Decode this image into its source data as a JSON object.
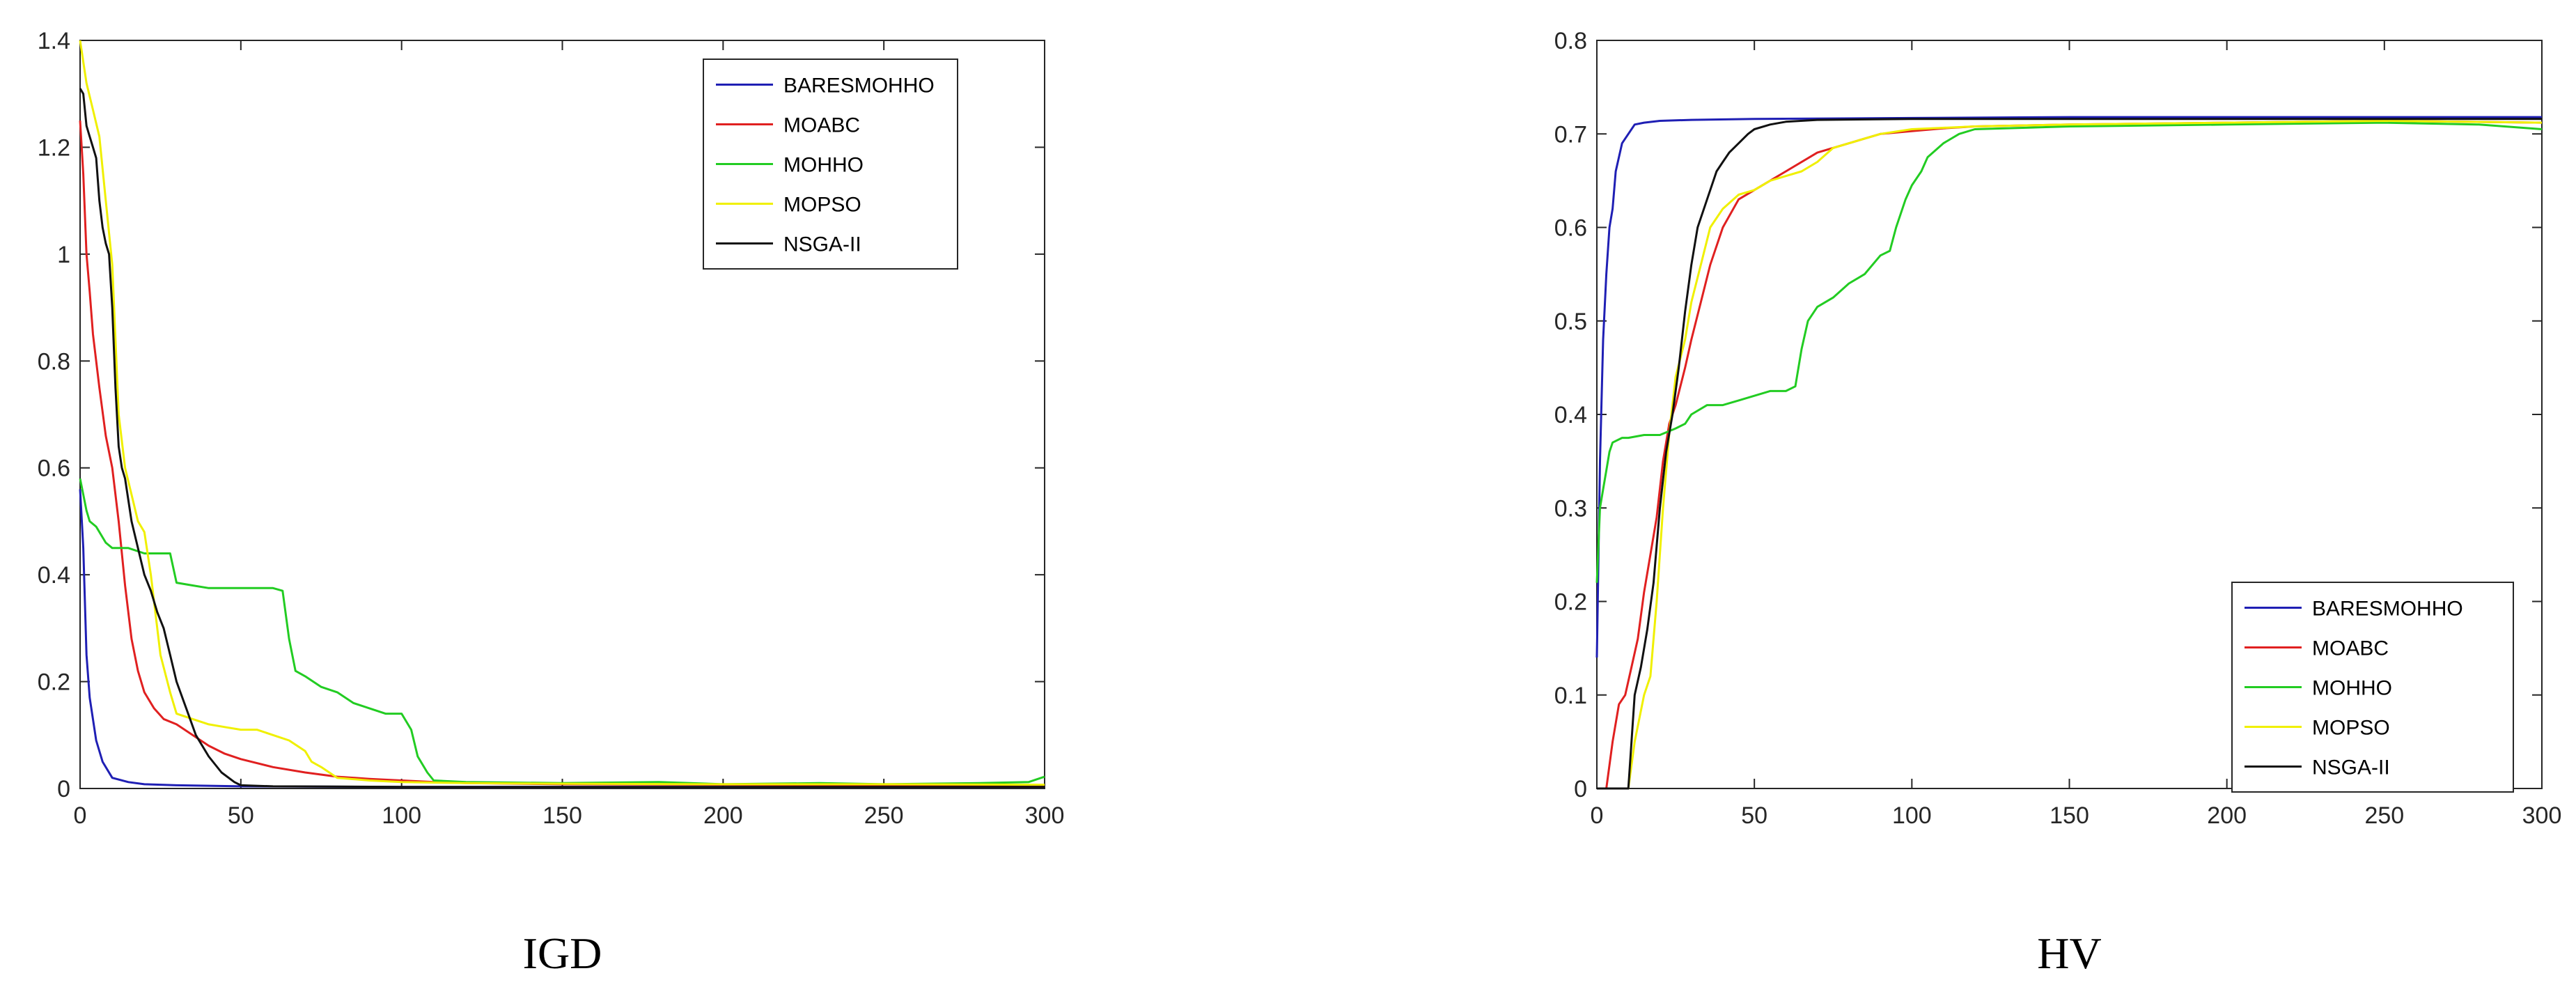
{
  "chart_data": [
    {
      "type": "line",
      "caption": "IGD",
      "xlim": [
        0,
        300
      ],
      "ylim": [
        0,
        1.4
      ],
      "xticks": [
        "0",
        "50",
        "100",
        "150",
        "200",
        "250",
        "300"
      ],
      "yticks": [
        "0",
        "0.2",
        "0.4",
        "0.6",
        "0.8",
        "1",
        "1.2",
        "1.4"
      ],
      "grid": false,
      "legend_position": "top-right",
      "series": [
        {
          "name": "BARESMOHHO",
          "color": "#1f1fb4",
          "x": [
            0,
            1,
            2,
            3,
            5,
            7,
            10,
            15,
            20,
            30,
            50,
            100,
            200,
            300
          ],
          "y": [
            0.56,
            0.45,
            0.25,
            0.17,
            0.09,
            0.05,
            0.02,
            0.012,
            0.008,
            0.006,
            0.004,
            0.003,
            0.003,
            0.003
          ]
        },
        {
          "name": "MOABC",
          "color": "#e02020",
          "x": [
            0,
            1,
            2,
            3,
            4,
            6,
            8,
            10,
            12,
            14,
            16,
            18,
            20,
            23,
            26,
            30,
            35,
            40,
            45,
            50,
            60,
            70,
            80,
            90,
            100,
            110,
            120,
            150,
            200,
            250,
            300
          ],
          "y": [
            1.25,
            1.15,
            1.0,
            0.93,
            0.85,
            0.75,
            0.66,
            0.6,
            0.5,
            0.38,
            0.28,
            0.22,
            0.18,
            0.15,
            0.13,
            0.12,
            0.1,
            0.08,
            0.065,
            0.055,
            0.04,
            0.03,
            0.022,
            0.018,
            0.015,
            0.012,
            0.01,
            0.008,
            0.007,
            0.006,
            0.006
          ]
        },
        {
          "name": "MOHHO",
          "color": "#22cc22",
          "x": [
            0,
            1,
            2,
            3,
            5,
            8,
            10,
            12,
            15,
            20,
            25,
            28,
            30,
            35,
            40,
            45,
            50,
            55,
            60,
            63,
            65,
            67,
            70,
            75,
            80,
            85,
            90,
            95,
            100,
            103,
            105,
            108,
            110,
            120,
            150,
            180,
            200,
            230,
            250,
            280,
            295,
            300
          ],
          "y": [
            0.58,
            0.55,
            0.52,
            0.5,
            0.49,
            0.46,
            0.45,
            0.45,
            0.45,
            0.44,
            0.44,
            0.44,
            0.385,
            0.38,
            0.375,
            0.375,
            0.375,
            0.375,
            0.375,
            0.37,
            0.28,
            0.22,
            0.21,
            0.19,
            0.18,
            0.16,
            0.15,
            0.14,
            0.14,
            0.11,
            0.06,
            0.03,
            0.015,
            0.012,
            0.01,
            0.012,
            0.008,
            0.01,
            0.008,
            0.01,
            0.012,
            0.022
          ]
        },
        {
          "name": "MOPSO",
          "color": "#f0f000",
          "x": [
            0,
            2,
            4,
            6,
            8,
            10,
            12,
            14,
            16,
            18,
            20,
            22,
            25,
            28,
            30,
            35,
            40,
            45,
            50,
            55,
            60,
            65,
            70,
            72,
            75,
            80,
            90,
            100,
            120,
            150,
            200,
            250,
            300
          ],
          "y": [
            1.4,
            1.32,
            1.27,
            1.22,
            1.1,
            0.98,
            0.7,
            0.6,
            0.55,
            0.5,
            0.48,
            0.4,
            0.25,
            0.18,
            0.14,
            0.13,
            0.12,
            0.115,
            0.11,
            0.11,
            0.1,
            0.09,
            0.07,
            0.05,
            0.04,
            0.02,
            0.015,
            0.012,
            0.01,
            0.009,
            0.008,
            0.008,
            0.007
          ]
        },
        {
          "name": "NSGA-II",
          "color": "#111111",
          "x": [
            0,
            1,
            2,
            3,
            4,
            5,
            6,
            7,
            8,
            9,
            10,
            11,
            12,
            13,
            14,
            16,
            18,
            20,
            22,
            24,
            26,
            28,
            30,
            33,
            36,
            40,
            44,
            48,
            50,
            60,
            100,
            200,
            300
          ],
          "y": [
            1.31,
            1.3,
            1.24,
            1.22,
            1.2,
            1.18,
            1.1,
            1.05,
            1.02,
            1.0,
            0.9,
            0.75,
            0.64,
            0.6,
            0.58,
            0.5,
            0.45,
            0.4,
            0.37,
            0.33,
            0.3,
            0.25,
            0.2,
            0.15,
            0.1,
            0.06,
            0.03,
            0.012,
            0.006,
            0.004,
            0.003,
            0.003,
            0.003
          ]
        }
      ]
    },
    {
      "type": "line",
      "caption": "HV",
      "xlim": [
        0,
        300
      ],
      "ylim": [
        0,
        0.8
      ],
      "xticks": [
        "0",
        "50",
        "100",
        "150",
        "200",
        "250",
        "300"
      ],
      "yticks": [
        "0",
        "0.1",
        "0.2",
        "0.3",
        "0.4",
        "0.5",
        "0.6",
        "0.7",
        "0.8"
      ],
      "grid": false,
      "legend_position": "bottom-right",
      "series": [
        {
          "name": "BARESMOHHO",
          "color": "#1f1fb4",
          "x": [
            0,
            1,
            2,
            3,
            4,
            5,
            6,
            8,
            10,
            12,
            15,
            20,
            30,
            50,
            100,
            150,
            200,
            250,
            300
          ],
          "y": [
            0.14,
            0.35,
            0.48,
            0.55,
            0.6,
            0.62,
            0.66,
            0.69,
            0.7,
            0.71,
            0.712,
            0.714,
            0.715,
            0.716,
            0.717,
            0.718,
            0.718,
            0.718,
            0.718
          ]
        },
        {
          "name": "MOABC",
          "color": "#e02020",
          "x": [
            0,
            3,
            5,
            7,
            9,
            11,
            13,
            15,
            17,
            19,
            21,
            23,
            25,
            28,
            30,
            33,
            36,
            40,
            45,
            50,
            55,
            60,
            70,
            80,
            90,
            100,
            110,
            120,
            150,
            200,
            250,
            300
          ],
          "y": [
            0,
            0,
            0.05,
            0.09,
            0.1,
            0.13,
            0.16,
            0.21,
            0.25,
            0.29,
            0.35,
            0.39,
            0.41,
            0.45,
            0.48,
            0.52,
            0.56,
            0.6,
            0.63,
            0.64,
            0.65,
            0.66,
            0.68,
            0.69,
            0.7,
            0.703,
            0.706,
            0.708,
            0.71,
            0.712,
            0.714,
            0.712
          ]
        },
        {
          "name": "MOHHO",
          "color": "#22cc22",
          "x": [
            0,
            1,
            2,
            3,
            4,
            5,
            8,
            10,
            15,
            20,
            25,
            28,
            30,
            35,
            40,
            45,
            50,
            55,
            60,
            63,
            65,
            67,
            70,
            75,
            80,
            85,
            90,
            93,
            95,
            98,
            100,
            103,
            105,
            110,
            115,
            120,
            150,
            200,
            250,
            280,
            300
          ],
          "y": [
            0.22,
            0.3,
            0.32,
            0.34,
            0.36,
            0.37,
            0.375,
            0.375,
            0.378,
            0.378,
            0.385,
            0.39,
            0.4,
            0.41,
            0.41,
            0.415,
            0.42,
            0.425,
            0.425,
            0.43,
            0.47,
            0.5,
            0.515,
            0.525,
            0.54,
            0.55,
            0.57,
            0.575,
            0.6,
            0.63,
            0.645,
            0.66,
            0.675,
            0.69,
            0.7,
            0.705,
            0.708,
            0.71,
            0.712,
            0.71,
            0.705
          ]
        },
        {
          "name": "MOPSO",
          "color": "#f0f000",
          "x": [
            0,
            10,
            12,
            15,
            17,
            19,
            21,
            23,
            25,
            28,
            30,
            33,
            36,
            40,
            45,
            50,
            55,
            60,
            65,
            70,
            75,
            80,
            90,
            100,
            120,
            150,
            200,
            250,
            300
          ],
          "y": [
            0,
            0,
            0.05,
            0.1,
            0.12,
            0.2,
            0.3,
            0.38,
            0.44,
            0.48,
            0.52,
            0.56,
            0.6,
            0.62,
            0.635,
            0.64,
            0.65,
            0.655,
            0.66,
            0.67,
            0.685,
            0.69,
            0.7,
            0.705,
            0.708,
            0.71,
            0.712,
            0.714,
            0.712
          ]
        },
        {
          "name": "NSGA-II",
          "color": "#111111",
          "x": [
            0,
            10,
            12,
            14,
            16,
            18,
            20,
            22,
            24,
            26,
            28,
            30,
            32,
            35,
            38,
            40,
            42,
            45,
            48,
            50,
            55,
            60,
            70,
            100,
            150,
            200,
            250,
            300
          ],
          "y": [
            0,
            0,
            0.1,
            0.13,
            0.17,
            0.22,
            0.3,
            0.36,
            0.4,
            0.45,
            0.51,
            0.56,
            0.6,
            0.63,
            0.66,
            0.67,
            0.68,
            0.69,
            0.7,
            0.705,
            0.71,
            0.713,
            0.715,
            0.716,
            0.716,
            0.716,
            0.716,
            0.716
          ]
        }
      ]
    }
  ]
}
